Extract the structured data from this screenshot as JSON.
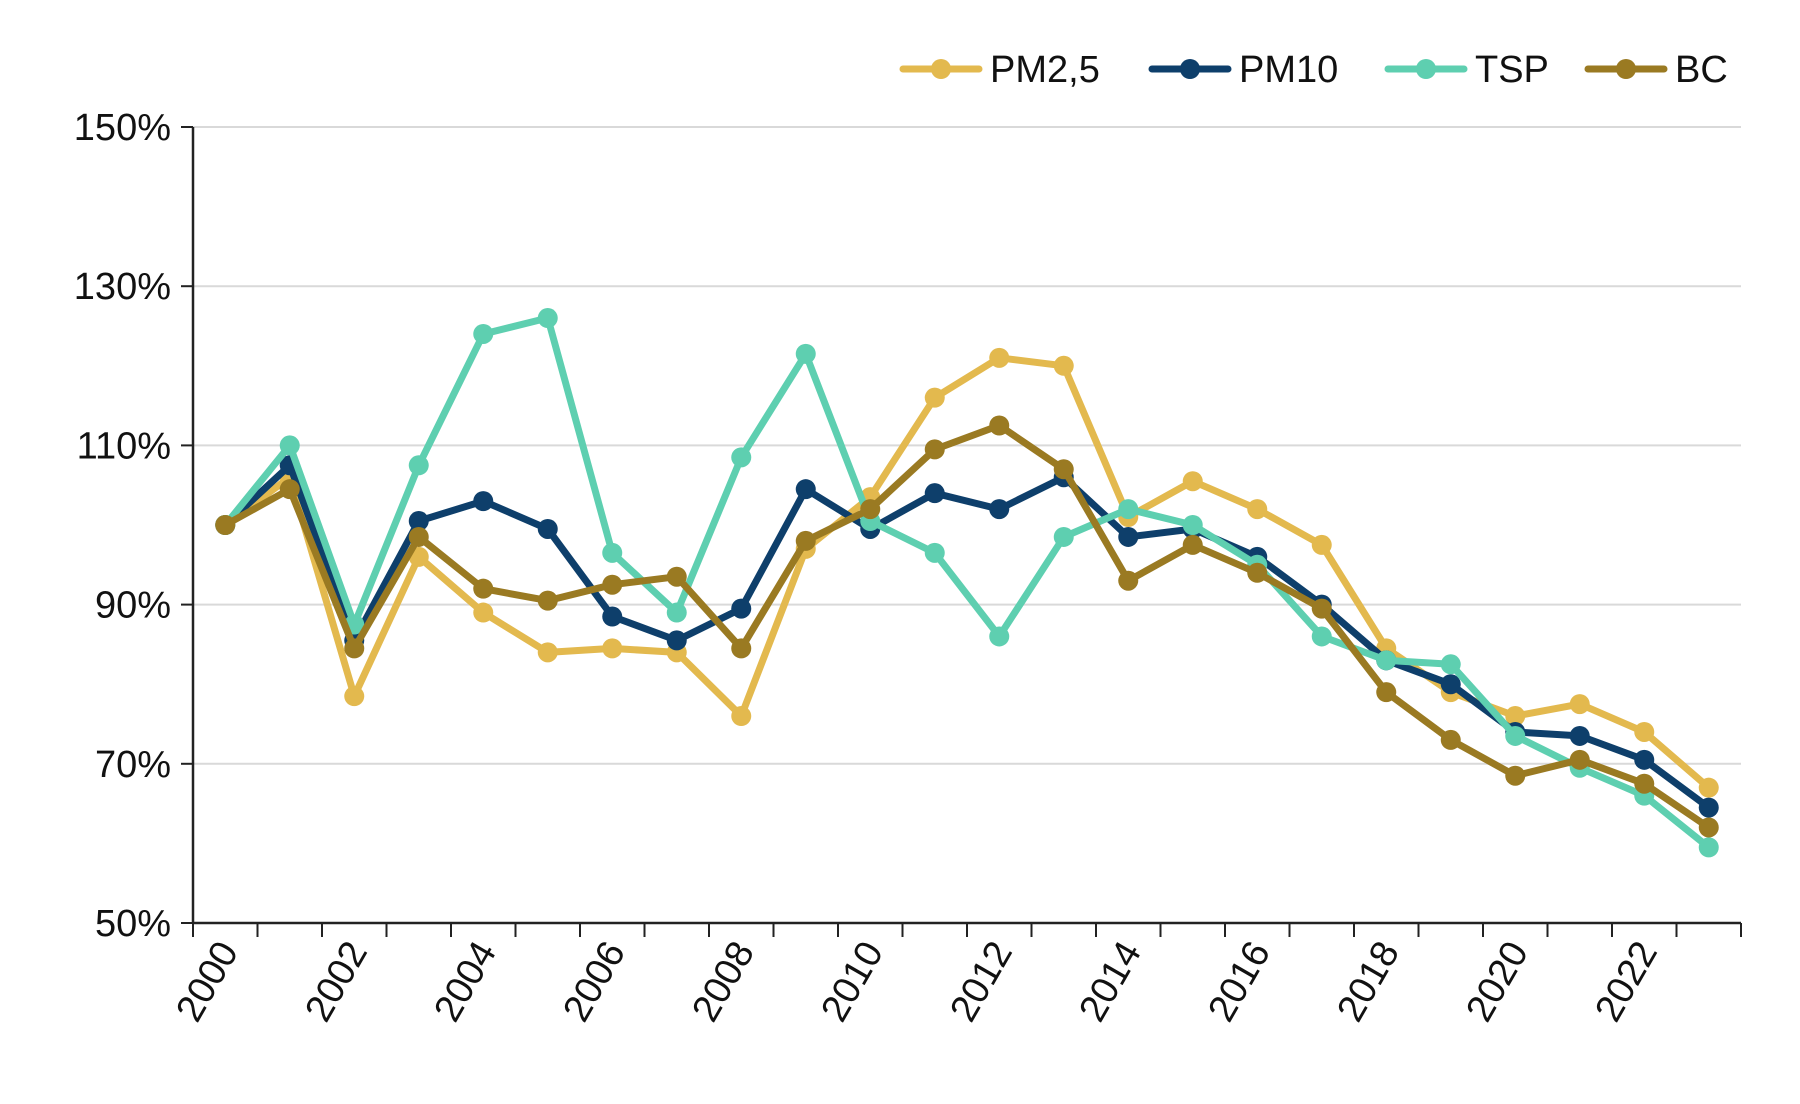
{
  "chart_data": {
    "type": "line",
    "title": "",
    "xlabel": "",
    "ylabel": "",
    "x": [
      2000,
      2001,
      2002,
      2003,
      2004,
      2005,
      2006,
      2007,
      2008,
      2009,
      2010,
      2011,
      2012,
      2013,
      2014,
      2015,
      2016,
      2017,
      2018,
      2019,
      2020,
      2021,
      2022,
      2023
    ],
    "x_tick_labels": [
      "2000",
      "2002",
      "2004",
      "2006",
      "2008",
      "2010",
      "2012",
      "2014",
      "2016",
      "2018",
      "2020",
      "2022"
    ],
    "y_tick_labels": [
      "50%",
      "70%",
      "90%",
      "110%",
      "130%",
      "150%"
    ],
    "ylim": [
      50,
      150
    ],
    "y_ticks": [
      50,
      70,
      90,
      110,
      130,
      150
    ],
    "grid": true,
    "legend_position": "top-right",
    "series": [
      {
        "name": "PM2,5",
        "color": "#E3B94E",
        "values": [
          100,
          106,
          78.5,
          96,
          89,
          84,
          84.5,
          84,
          76,
          97,
          103.5,
          116,
          121,
          120,
          101,
          105.5,
          102,
          97.5,
          84.5,
          79,
          76,
          77.5,
          74,
          67
        ]
      },
      {
        "name": "PM10",
        "color": "#0E3F6B",
        "values": [
          100,
          107.5,
          85.5,
          100.5,
          103,
          99.5,
          88.5,
          85.5,
          89.5,
          104.5,
          99.5,
          104,
          102,
          106,
          98.5,
          99.5,
          96,
          90,
          83,
          80,
          74,
          73.5,
          70.5,
          64.5
        ]
      },
      {
        "name": "TSP",
        "color": "#5ECFB0",
        "values": [
          100,
          110,
          87.5,
          107.5,
          124,
          126,
          96.5,
          89,
          108.5,
          121.5,
          100.5,
          96.5,
          86,
          98.5,
          102,
          100,
          95,
          86,
          83,
          82.5,
          73.5,
          69.5,
          66,
          59.5
        ]
      },
      {
        "name": "BC",
        "color": "#9A7A22",
        "values": [
          100,
          104.5,
          84.5,
          98.5,
          92,
          90.5,
          92.5,
          93.5,
          84.5,
          98,
          102,
          109.5,
          112.5,
          107,
          93,
          97.5,
          94,
          89.5,
          79,
          73,
          68.5,
          70.5,
          67.5,
          62
        ]
      }
    ]
  }
}
